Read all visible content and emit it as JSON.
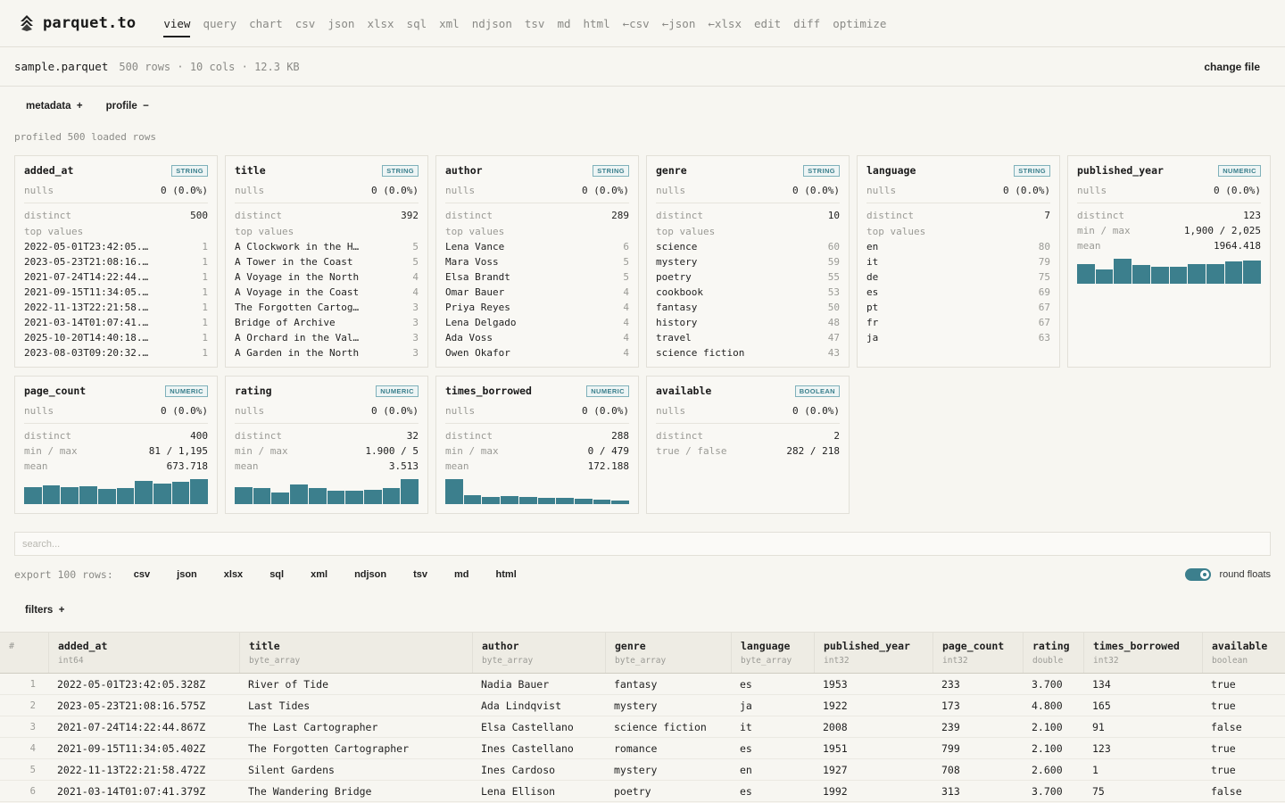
{
  "brand": {
    "name": "parquet.to",
    "logo": "layers-logo-icon"
  },
  "nav": [
    "view",
    "query",
    "chart",
    "csv",
    "json",
    "xlsx",
    "sql",
    "xml",
    "ndjson",
    "tsv",
    "md",
    "html",
    "←csv",
    "←json",
    "←xlsx",
    "edit",
    "diff",
    "optimize"
  ],
  "nav_active": "view",
  "file": {
    "name": "sample.parquet",
    "meta": "500 rows · 10 cols · 12.3 KB",
    "change_label": "change file"
  },
  "toggles": {
    "metadata": "metadata  +",
    "profile": "profile  −"
  },
  "profiled_label": "profiled 500 loaded rows",
  "cards": [
    {
      "name": "added_at",
      "type": "STRING",
      "nulls": "0 (0.0%)",
      "distinct": "500",
      "top": [
        [
          "2022-05-01T23:42:05.…",
          "1"
        ],
        [
          "2023-05-23T21:08:16.…",
          "1"
        ],
        [
          "2021-07-24T14:22:44.…",
          "1"
        ],
        [
          "2021-09-15T11:34:05.…",
          "1"
        ],
        [
          "2022-11-13T22:21:58.…",
          "1"
        ],
        [
          "2021-03-14T01:07:41.…",
          "1"
        ],
        [
          "2025-10-20T14:40:18.…",
          "1"
        ],
        [
          "2023-08-03T09:20:32.…",
          "1"
        ]
      ]
    },
    {
      "name": "title",
      "type": "STRING",
      "nulls": "0 (0.0%)",
      "distinct": "392",
      "top": [
        [
          "A Clockwork in the H…",
          "5"
        ],
        [
          "A Tower in the Coast",
          "5"
        ],
        [
          "A Voyage in the North",
          "4"
        ],
        [
          "A Voyage in the Coast",
          "4"
        ],
        [
          "The Forgotten Cartog…",
          "3"
        ],
        [
          "Bridge of Archive",
          "3"
        ],
        [
          "A Orchard in the Val…",
          "3"
        ],
        [
          "A Garden in the North",
          "3"
        ]
      ]
    },
    {
      "name": "author",
      "type": "STRING",
      "nulls": "0 (0.0%)",
      "distinct": "289",
      "top": [
        [
          "Lena Vance",
          "6"
        ],
        [
          "Mara Voss",
          "5"
        ],
        [
          "Elsa Brandt",
          "5"
        ],
        [
          "Omar Bauer",
          "4"
        ],
        [
          "Priya Reyes",
          "4"
        ],
        [
          "Lena Delgado",
          "4"
        ],
        [
          "Ada Voss",
          "4"
        ],
        [
          "Owen Okafor",
          "4"
        ]
      ]
    },
    {
      "name": "genre",
      "type": "STRING",
      "nulls": "0 (0.0%)",
      "distinct": "10",
      "top": [
        [
          "science",
          "60"
        ],
        [
          "mystery",
          "59"
        ],
        [
          "poetry",
          "55"
        ],
        [
          "cookbook",
          "53"
        ],
        [
          "fantasy",
          "50"
        ],
        [
          "history",
          "48"
        ],
        [
          "travel",
          "47"
        ],
        [
          "science fiction",
          "43"
        ]
      ]
    },
    {
      "name": "language",
      "type": "STRING",
      "nulls": "0 (0.0%)",
      "distinct": "7",
      "top": [
        [
          "en",
          "80"
        ],
        [
          "it",
          "79"
        ],
        [
          "de",
          "75"
        ],
        [
          "es",
          "69"
        ],
        [
          "pt",
          "67"
        ],
        [
          "fr",
          "67"
        ],
        [
          "ja",
          "63"
        ]
      ]
    },
    {
      "name": "published_year",
      "type": "NUMERIC",
      "nulls": "0 (0.0%)",
      "distinct": "123",
      "minmax": "1,900 / 2,025",
      "mean": "1964.418",
      "hist": [
        0.72,
        0.55,
        0.92,
        0.7,
        0.65,
        0.62,
        0.72,
        0.72,
        0.82,
        0.86
      ]
    },
    {
      "name": "page_count",
      "type": "NUMERIC",
      "nulls": "0 (0.0%)",
      "distinct": "400",
      "minmax": "81 / 1,195",
      "mean": "673.718",
      "hist": [
        0.65,
        0.7,
        0.62,
        0.68,
        0.58,
        0.6,
        0.88,
        0.78,
        0.85,
        0.95
      ]
    },
    {
      "name": "rating",
      "type": "NUMERIC",
      "nulls": "0 (0.0%)",
      "distinct": "32",
      "minmax": "1.900 / 5",
      "mean": "3.513",
      "hist": [
        0.62,
        0.6,
        0.45,
        0.75,
        0.6,
        0.5,
        0.5,
        0.55,
        0.6,
        0.95
      ]
    },
    {
      "name": "times_borrowed",
      "type": "NUMERIC",
      "nulls": "0 (0.0%)",
      "distinct": "288",
      "minmax": "0 / 479",
      "mean": "172.188",
      "hist": [
        0.95,
        0.32,
        0.28,
        0.3,
        0.28,
        0.25,
        0.22,
        0.2,
        0.16,
        0.14
      ]
    },
    {
      "name": "available",
      "type": "BOOLEAN",
      "nulls": "0 (0.0%)",
      "distinct": "2",
      "truefalse": "282 / 218"
    }
  ],
  "labels": {
    "nulls": "nulls",
    "distinct": "distinct",
    "top_values": "top values",
    "minmax": "min / max",
    "mean": "mean",
    "truefalse": "true / false"
  },
  "search": {
    "placeholder": "search..."
  },
  "export": {
    "label": "export 100 rows:",
    "formats": [
      "csv",
      "json",
      "xlsx",
      "sql",
      "xml",
      "ndjson",
      "tsv",
      "md",
      "html"
    ]
  },
  "round_floats": "round floats",
  "filters_label": "filters  +",
  "table": {
    "index_header": "#",
    "columns": [
      {
        "name": "added_at",
        "type": "int64"
      },
      {
        "name": "title",
        "type": "byte_array"
      },
      {
        "name": "author",
        "type": "byte_array"
      },
      {
        "name": "genre",
        "type": "byte_array"
      },
      {
        "name": "language",
        "type": "byte_array"
      },
      {
        "name": "published_year",
        "type": "int32"
      },
      {
        "name": "page_count",
        "type": "int32"
      },
      {
        "name": "rating",
        "type": "double"
      },
      {
        "name": "times_borrowed",
        "type": "int32"
      },
      {
        "name": "available",
        "type": "boolean"
      }
    ],
    "rows": [
      [
        "1",
        "2022-05-01T23:42:05.328Z",
        "River of Tide",
        "Nadia Bauer",
        "fantasy",
        "es",
        "1953",
        "233",
        "3.700",
        "134",
        "true"
      ],
      [
        "2",
        "2023-05-23T21:08:16.575Z",
        "Last Tides",
        "Ada Lindqvist",
        "mystery",
        "ja",
        "1922",
        "173",
        "4.800",
        "165",
        "true"
      ],
      [
        "3",
        "2021-07-24T14:22:44.867Z",
        "The Last Cartographer",
        "Elsa Castellano",
        "science fiction",
        "it",
        "2008",
        "239",
        "2.100",
        "91",
        "false"
      ],
      [
        "4",
        "2021-09-15T11:34:05.402Z",
        "The Forgotten Cartographer",
        "Ines Castellano",
        "romance",
        "es",
        "1951",
        "799",
        "2.100",
        "123",
        "true"
      ],
      [
        "5",
        "2022-11-13T22:21:58.472Z",
        "Silent Gardens",
        "Ines Cardoso",
        "mystery",
        "en",
        "1927",
        "708",
        "2.600",
        "1",
        "true"
      ],
      [
        "6",
        "2021-03-14T01:07:41.379Z",
        "The Wandering Bridge",
        "Lena Ellison",
        "poetry",
        "es",
        "1992",
        "313",
        "3.700",
        "75",
        "false"
      ]
    ]
  }
}
